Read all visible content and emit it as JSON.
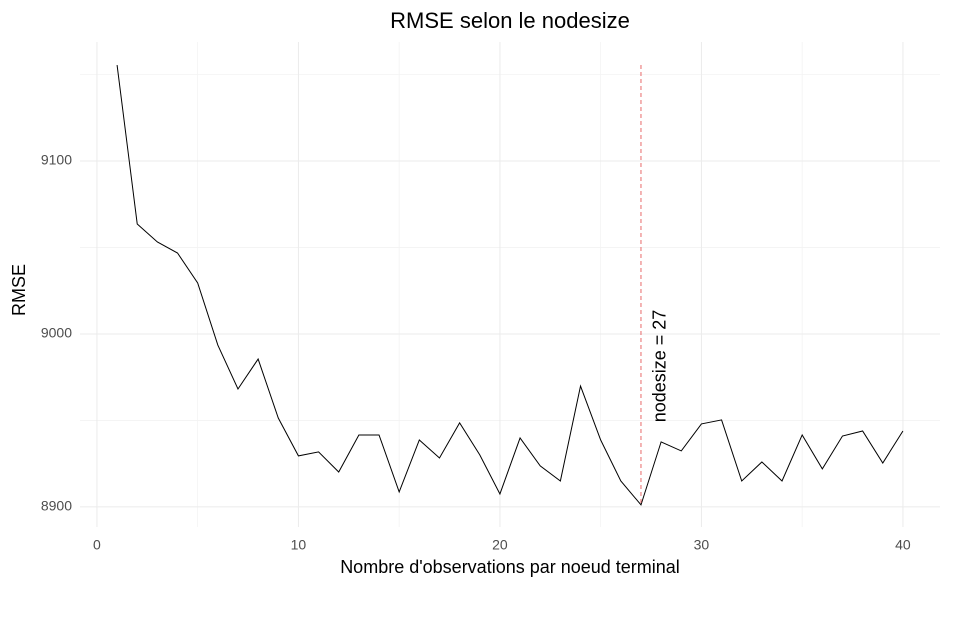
{
  "chart_data": {
    "type": "line",
    "title": "RMSE selon le nodesize",
    "x_label": "Nombre d'observations par noeud terminal",
    "y_label": "RMSE",
    "x": [
      1,
      2,
      3,
      4,
      5,
      6,
      7,
      8,
      9,
      10,
      11,
      12,
      13,
      14,
      15,
      16,
      17,
      18,
      19,
      20,
      21,
      22,
      23,
      24,
      25,
      26,
      27,
      28,
      29,
      30,
      31,
      32,
      33,
      34,
      35,
      36,
      37,
      38,
      39,
      40
    ],
    "series": [
      {
        "name": "RMSE",
        "color": "#000000",
        "values": [
          9155.5,
          9063.6,
          9053.2,
          9046.8,
          9029.5,
          8993.6,
          8968.2,
          8985.5,
          8951.4,
          8929.5,
          8931.8,
          8920.2,
          8941.6,
          8941.6,
          8908.7,
          8938.7,
          8928.3,
          8948.6,
          8930.1,
          8907.5,
          8939.9,
          8923.7,
          8915.0,
          8969.9,
          8938.7,
          8915.0,
          8901.2,
          8937.6,
          8932.4,
          8948.0,
          8950.3,
          8915.0,
          8926.0,
          8915.0,
          8941.6,
          8922.0,
          8941.0,
          8943.9,
          8925.4,
          8943.9
        ]
      }
    ],
    "vline": {
      "x": 27,
      "color": "#e8696a"
    },
    "annotation": "nodesize = 27",
    "xlim": [
      -0.84,
      41.84
    ],
    "ylim": [
      8888.4,
      9168.8
    ],
    "xticks": [
      0,
      10,
      20,
      30,
      40
    ],
    "yticks": [
      8900,
      9000,
      9100
    ],
    "grid": true
  }
}
